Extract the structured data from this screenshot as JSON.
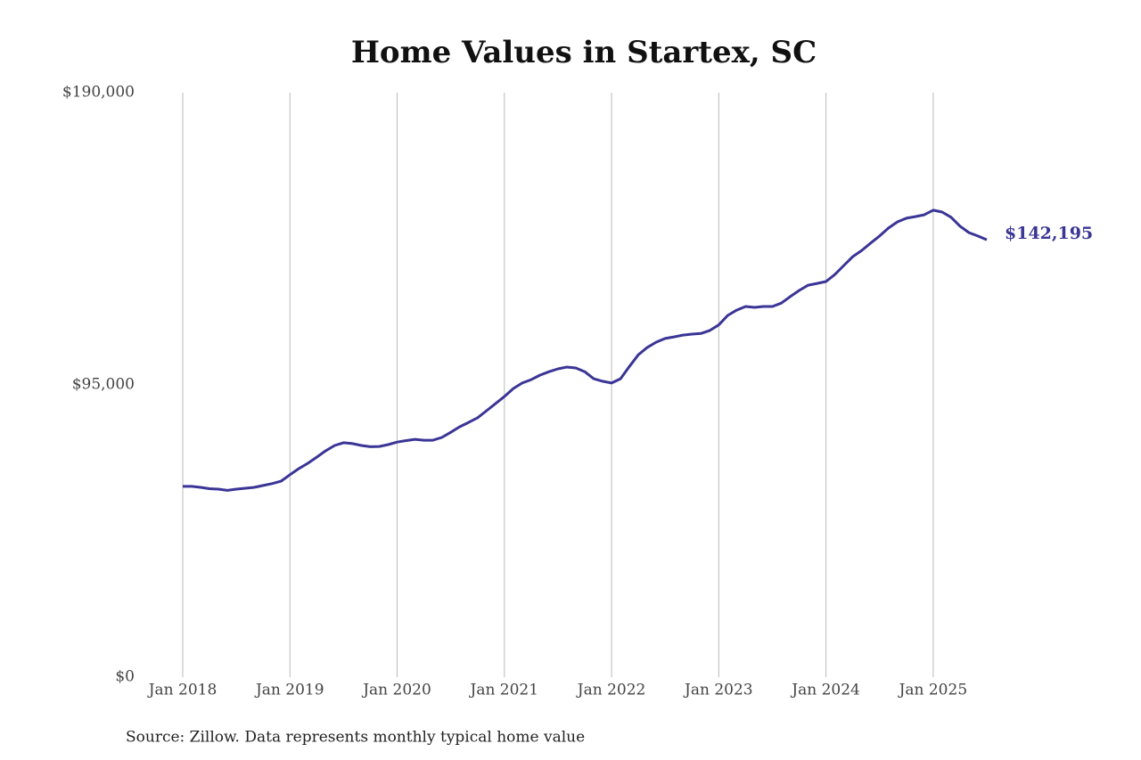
{
  "chart_data": {
    "type": "line",
    "title": "Home Values in Startex, SC",
    "source": "Source: Zillow. Data represents monthly typical home value",
    "x": [
      "2018-01",
      "2018-02",
      "2018-03",
      "2018-04",
      "2018-05",
      "2018-06",
      "2018-07",
      "2018-08",
      "2018-09",
      "2018-10",
      "2018-11",
      "2018-12",
      "2019-01",
      "2019-02",
      "2019-03",
      "2019-04",
      "2019-05",
      "2019-06",
      "2019-07",
      "2019-08",
      "2019-09",
      "2019-10",
      "2019-11",
      "2019-12",
      "2020-01",
      "2020-02",
      "2020-03",
      "2020-04",
      "2020-05",
      "2020-06",
      "2020-07",
      "2020-08",
      "2020-09",
      "2020-10",
      "2020-11",
      "2020-12",
      "2021-01",
      "2021-02",
      "2021-03",
      "2021-04",
      "2021-05",
      "2021-06",
      "2021-07",
      "2021-08",
      "2021-09",
      "2021-10",
      "2021-11",
      "2021-12",
      "2022-01",
      "2022-02",
      "2022-03",
      "2022-04",
      "2022-05",
      "2022-06",
      "2022-07",
      "2022-08",
      "2022-09",
      "2022-10",
      "2022-11",
      "2022-12",
      "2023-01",
      "2023-02",
      "2023-03",
      "2023-04",
      "2023-05",
      "2023-06",
      "2023-07",
      "2023-08",
      "2023-09",
      "2023-10",
      "2023-11",
      "2023-12",
      "2024-01",
      "2024-02",
      "2024-03",
      "2024-04",
      "2024-05",
      "2024-06",
      "2024-07",
      "2024-08",
      "2024-09",
      "2024-10",
      "2024-11",
      "2024-12",
      "2025-01",
      "2025-02",
      "2025-03",
      "2025-04",
      "2025-05",
      "2025-06",
      "2025-07"
    ],
    "series": [
      {
        "name": "Typical home value",
        "color": "#3a3596",
        "values": [
          62000,
          62000,
          61700,
          61250,
          61100,
          60700,
          61100,
          61400,
          61700,
          62300,
          62900,
          63700,
          65800,
          67800,
          69500,
          71500,
          73600,
          75300,
          76200,
          75900,
          75300,
          74900,
          75000,
          75600,
          76400,
          76900,
          77300,
          77000,
          77000,
          77900,
          79600,
          81400,
          82800,
          84300,
          86600,
          88900,
          91200,
          93800,
          95600,
          96700,
          98200,
          99300,
          100200,
          100800,
          100500,
          99300,
          97000,
          96200,
          95600,
          97000,
          101000,
          104800,
          107200,
          108900,
          110100,
          110600,
          111200,
          111500,
          111700,
          112700,
          114500,
          117600,
          119300,
          120500,
          120200,
          120500,
          120500,
          121600,
          123700,
          125700,
          127400,
          128000,
          128600,
          130900,
          133800,
          136700,
          138700,
          141100,
          143400,
          146000,
          148000,
          149200,
          149700,
          150300,
          151800,
          151200,
          149500,
          146600,
          144500,
          143400,
          142195
        ]
      }
    ],
    "last_value_label": "$142,195",
    "xlim": [
      "2018-01",
      "2025-07"
    ],
    "xticks": [
      {
        "value": "2018-01",
        "label": "Jan 2018"
      },
      {
        "value": "2019-01",
        "label": "Jan 2019"
      },
      {
        "value": "2020-01",
        "label": "Jan 2020"
      },
      {
        "value": "2021-01",
        "label": "Jan 2021"
      },
      {
        "value": "2022-01",
        "label": "Jan 2022"
      },
      {
        "value": "2023-01",
        "label": "Jan 2023"
      },
      {
        "value": "2024-01",
        "label": "Jan 2024"
      },
      {
        "value": "2025-01",
        "label": "Jan 2025"
      }
    ],
    "ylim": [
      0,
      190000
    ],
    "yticks": [
      {
        "value": 0,
        "label": "$0"
      },
      {
        "value": 95000,
        "label": "$95,000"
      },
      {
        "value": 190000,
        "label": "$190,000"
      }
    ],
    "grid": "x"
  }
}
